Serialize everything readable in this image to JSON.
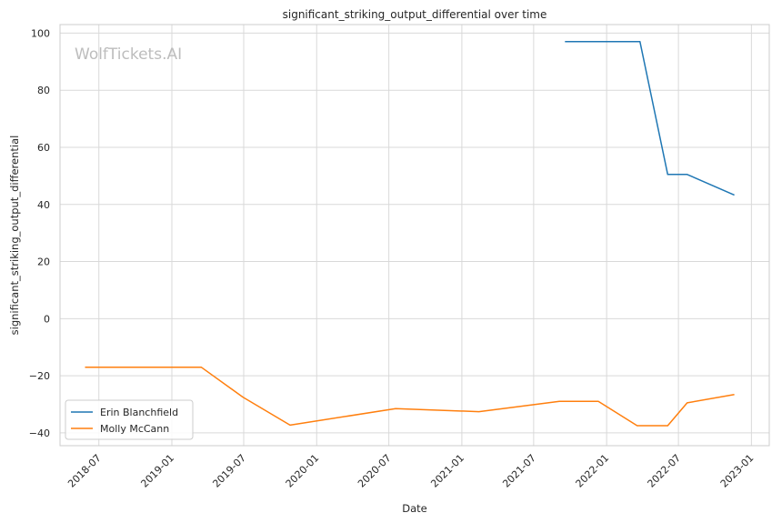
{
  "chart_data": {
    "type": "line",
    "title": "significant_striking_output_differential over time",
    "xlabel": "Date",
    "ylabel": "significant_striking_output_differential",
    "watermark": "WolfTickets.AI",
    "grid": true,
    "legend_position": "lower-left",
    "ylim": [
      -44.5,
      103
    ],
    "xlim": [
      "2018-03-25",
      "2023-02-15"
    ],
    "y_ticks": [
      -40,
      -20,
      0,
      20,
      40,
      60,
      80,
      100
    ],
    "y_tick_labels": [
      "−40",
      "−20",
      "0",
      "20",
      "40",
      "60",
      "80",
      "100"
    ],
    "x_ticks": [
      "2018-07-01",
      "2019-01-01",
      "2019-07-01",
      "2020-01-01",
      "2020-07-01",
      "2021-01-01",
      "2021-07-01",
      "2022-01-01",
      "2022-07-01",
      "2023-01-01"
    ],
    "x_tick_labels": [
      "2018-07",
      "2019-01",
      "2019-07",
      "2020-01",
      "2020-07",
      "2021-01",
      "2021-07",
      "2022-01",
      "2022-07",
      "2023-01"
    ],
    "series": [
      {
        "name": "Erin Blanchfield",
        "color": "#1f77b4",
        "points": [
          {
            "x": "2021-09-18",
            "y": 97
          },
          {
            "x": "2022-03-26",
            "y": 97
          },
          {
            "x": "2022-06-04",
            "y": 50.5
          },
          {
            "x": "2022-07-23",
            "y": 50.5
          },
          {
            "x": "2022-11-19",
            "y": 43.3
          }
        ]
      },
      {
        "name": "Molly McCann",
        "color": "#ff7f0e",
        "points": [
          {
            "x": "2018-05-27",
            "y": -17
          },
          {
            "x": "2019-03-16",
            "y": -17
          },
          {
            "x": "2019-06-29",
            "y": -27.5
          },
          {
            "x": "2019-10-26",
            "y": -37.3
          },
          {
            "x": "2020-07-18",
            "y": -31.5
          },
          {
            "x": "2021-02-13",
            "y": -32.6
          },
          {
            "x": "2021-09-04",
            "y": -29
          },
          {
            "x": "2021-12-11",
            "y": -29
          },
          {
            "x": "2022-03-19",
            "y": -37.5
          },
          {
            "x": "2022-06-04",
            "y": -37.5
          },
          {
            "x": "2022-07-23",
            "y": -29.5
          },
          {
            "x": "2022-11-19",
            "y": -26.6
          }
        ]
      }
    ]
  }
}
